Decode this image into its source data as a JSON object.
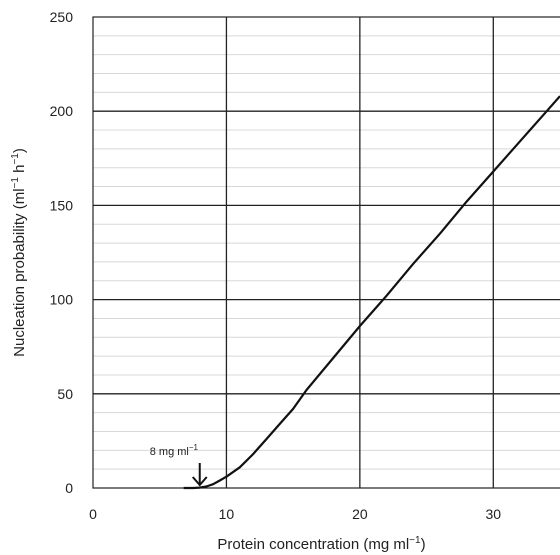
{
  "chart_data": {
    "type": "line",
    "title": "",
    "xlabel": "Protein concentration  (mg ml",
    "xlabel_sup": "−1",
    "xlabel_end": ")",
    "ylabel": "Nucleation probability (ml",
    "ylabel_sup1": "−1",
    "ylabel_mid": " h",
    "ylabel_sup2": "−1",
    "ylabel_end": ")",
    "xlim": [
      0,
      35
    ],
    "ylim": [
      0,
      250
    ],
    "x_ticks": [
      0,
      10,
      20,
      30
    ],
    "x_tick_labels": [
      "0",
      "10",
      "20",
      "30"
    ],
    "y_ticks": [
      0,
      50,
      100,
      150,
      200,
      250
    ],
    "y_tick_labels": [
      "0",
      "50",
      "100",
      "150",
      "200",
      "250"
    ],
    "grid": true,
    "series": [
      {
        "x": [
          6.8,
          7.5,
          8,
          8.5,
          9,
          9.5,
          10,
          11,
          12,
          13,
          14,
          15,
          16,
          18,
          20,
          22,
          24,
          26,
          28,
          30,
          32,
          34,
          35
        ],
        "y": [
          0,
          0,
          0.2,
          0.8,
          2,
          4,
          6,
          11,
          18,
          26,
          34,
          42,
          52,
          69,
          86,
          102,
          119,
          135,
          152,
          168,
          184,
          200,
          208
        ],
        "color": "#111111"
      }
    ],
    "annotation": {
      "text": "8 mg ml",
      "sup": "−1",
      "x": 8,
      "y": 0
    }
  }
}
